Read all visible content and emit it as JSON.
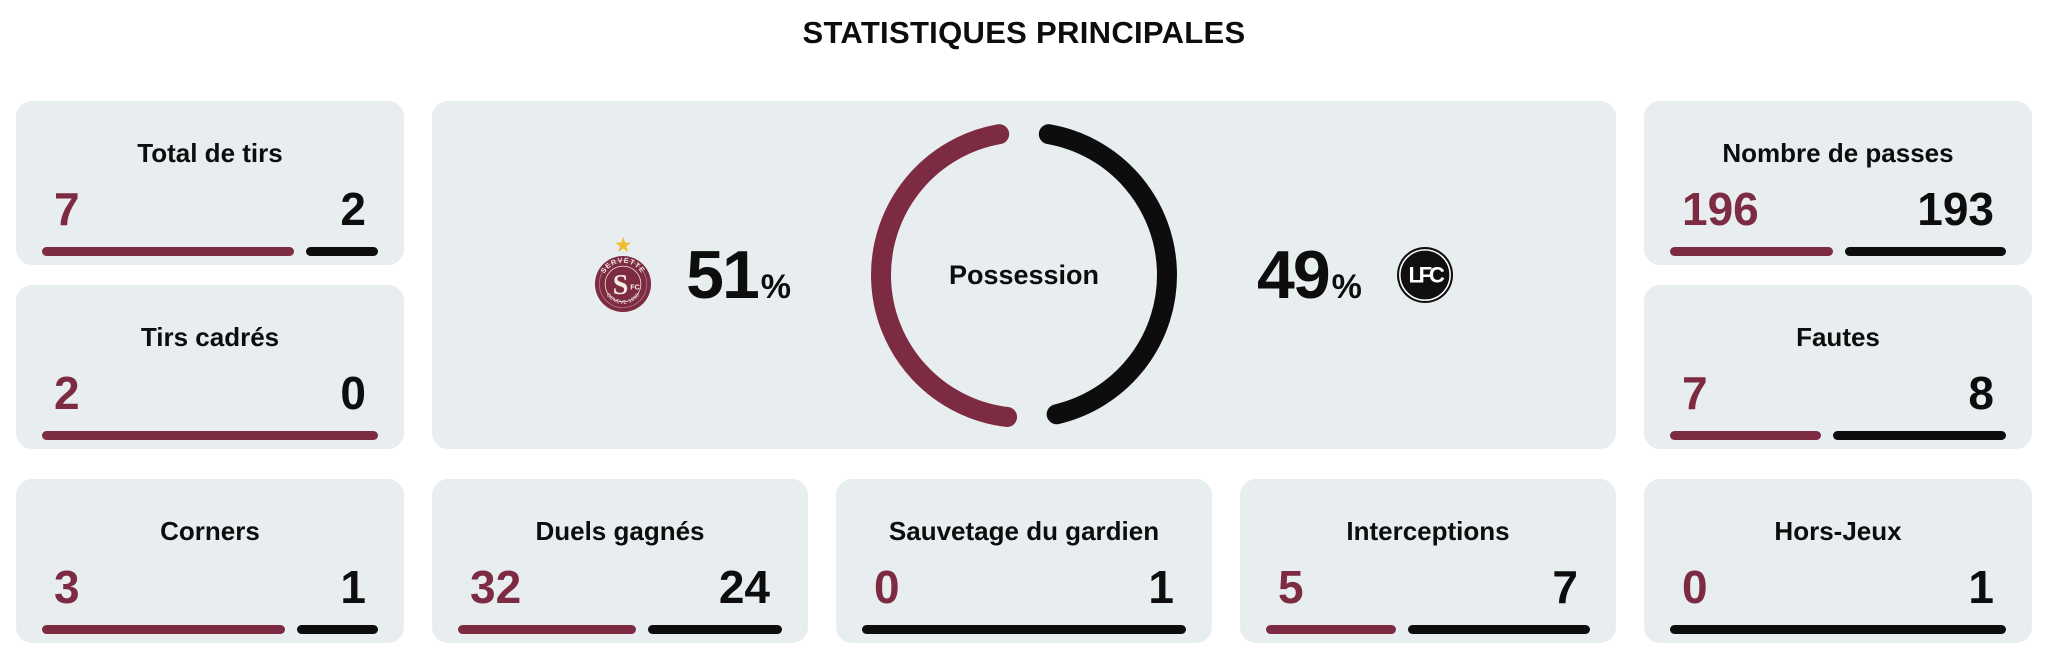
{
  "page_title": "STATISTIQUES PRINCIPALES",
  "colors": {
    "home_accent": "#7d2b42",
    "away_accent": "#0d0d0d",
    "card_background": "#e8edf0",
    "star_gold": "#eebc2e"
  },
  "teams": {
    "home": {
      "star": "★",
      "crest_top_text": "SERVETTE",
      "crest_bottom_text": "GENEVE 1890",
      "crest_monogram": "S",
      "crest_suffix": "FC"
    },
    "away": {
      "crest_monogram": "LFC"
    }
  },
  "possession": {
    "label": "Possession",
    "home_value": "51",
    "away_value": "49",
    "unit": "%"
  },
  "stat_groups": {
    "left": [
      {
        "label": "Total de tirs",
        "home": 7,
        "away": 2
      },
      {
        "label": "Tirs cadrés",
        "home": 2,
        "away": 0
      }
    ],
    "right": [
      {
        "label": "Nombre de passes",
        "home": 196,
        "away": 193
      },
      {
        "label": "Fautes",
        "home": 7,
        "away": 8
      }
    ],
    "bottom": [
      {
        "label": "Corners",
        "home": 3,
        "away": 1
      },
      {
        "label": "Duels gagnés",
        "home": 32,
        "away": 24
      },
      {
        "label": "Sauvetage du gardien",
        "home": 0,
        "away": 1
      },
      {
        "label": "Interceptions",
        "home": 5,
        "away": 7
      },
      {
        "label": "Hors-Jeux",
        "home": 0,
        "away": 1
      }
    ]
  },
  "chart_data": [
    {
      "type": "pie",
      "subtype": "donut-open-gaps",
      "title": "Possession",
      "labels": [
        "Servette FC (home, maroon)",
        "FC Lugano (away, black)"
      ],
      "values": [
        51,
        49
      ],
      "unit": "%",
      "colors": [
        "#7d2b42",
        "#0d0d0d"
      ],
      "center_label": "Possession",
      "legend_position": "sides-with-club-crests"
    },
    {
      "type": "bar",
      "subtype": "paired-horizontal-comparison-bars",
      "title": "STATISTIQUES PRINCIPALES",
      "categories": [
        "Total de tirs",
        "Tirs cadrés",
        "Nombre de passes",
        "Fautes",
        "Corners",
        "Duels gagnés",
        "Sauvetage du gardien",
        "Interceptions",
        "Hors-Jeux"
      ],
      "series": [
        {
          "name": "Servette FC (home, maroon)",
          "values": [
            7,
            2,
            196,
            7,
            3,
            32,
            0,
            5,
            0
          ]
        },
        {
          "name": "FC Lugano (away, black)",
          "values": [
            2,
            0,
            193,
            8,
            1,
            24,
            1,
            7,
            1
          ]
        }
      ],
      "note": "each card shows home value left (maroon) vs away value right (black); bar lengths proportional to values"
    }
  ]
}
